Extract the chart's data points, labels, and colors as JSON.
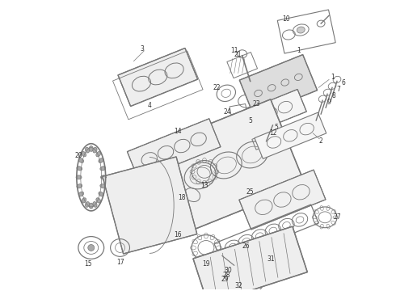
{
  "bg_color": "#ffffff",
  "lc": "#777777",
  "lc_dark": "#555555",
  "fig_w": 4.9,
  "fig_h": 3.6,
  "dpi": 100,
  "font_size": 5.5
}
